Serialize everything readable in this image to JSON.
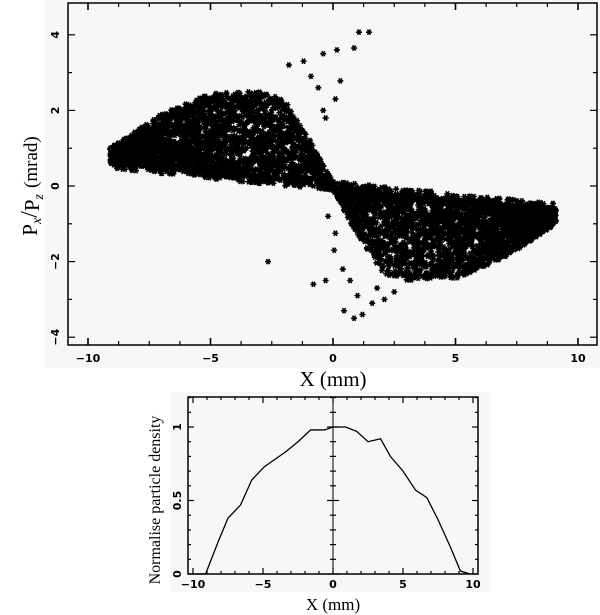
{
  "chart_data": [
    {
      "type": "scatter",
      "title": "",
      "xlabel": "X (mm)",
      "ylabel_parts": {
        "num": "P",
        "num_sub": "x",
        "den": "P",
        "den_sub": "z",
        "unit": "(mrad)"
      },
      "ylabel": "Px/Pz (mrad)",
      "xlim": [
        -10.8,
        10.8
      ],
      "ylim": [
        -4.2,
        4.9
      ],
      "xticks": [
        -10,
        -5,
        0,
        5,
        10
      ],
      "yticks": [
        -4,
        -2,
        0,
        2,
        4
      ],
      "x_minor_step": 1.5,
      "y_minor_step": 1,
      "grid": false,
      "marker": "asterisk",
      "color": "#000000",
      "point_count_approx": 6000,
      "distribution": {
        "description": "Two opposing triangular lobes (bow-tie) crossing at origin",
        "left_lobe": {
          "x_range": [
            -9.1,
            0
          ],
          "lower_edge": [
            [
              -9.1,
              0.6
            ],
            [
              -5,
              0.35
            ],
            [
              0,
              0.02
            ]
          ],
          "upper_edge": [
            [
              -9.1,
              1.0
            ],
            [
              -7,
              1.9
            ],
            [
              -5,
              2.45
            ],
            [
              -3,
              2.5
            ],
            [
              -2,
              2.3
            ],
            [
              -1,
              1.3
            ],
            [
              0,
              0.1
            ]
          ]
        },
        "right_lobe": {
          "x_range": [
            0,
            9.1
          ],
          "upper_edge": [
            [
              0,
              -0.02
            ],
            [
              5,
              -0.35
            ],
            [
              9.1,
              -0.6
            ]
          ],
          "lower_edge": [
            [
              0,
              -0.1
            ],
            [
              1,
              -1.3
            ],
            [
              2,
              -2.3
            ],
            [
              3,
              -2.5
            ],
            [
              5,
              -2.45
            ],
            [
              7,
              -1.9
            ],
            [
              9.1,
              -1.0
            ]
          ]
        }
      },
      "outliers": [
        [
          1.06,
          4.07
        ],
        [
          1.47,
          4.07
        ],
        [
          0.86,
          3.65
        ],
        [
          0.16,
          3.6
        ],
        [
          -0.4,
          3.5
        ],
        [
          0.3,
          2.78
        ],
        [
          -1.2,
          3.3
        ],
        [
          -1.8,
          3.2
        ],
        [
          0.1,
          2.3
        ],
        [
          -0.4,
          2.0
        ],
        [
          -0.3,
          1.8
        ],
        [
          -0.9,
          2.9
        ],
        [
          -0.6,
          2.6
        ],
        [
          -0.8,
          -2.6
        ],
        [
          -0.3,
          -2.5
        ],
        [
          0.45,
          -3.3
        ],
        [
          0.86,
          -3.5
        ],
        [
          1.2,
          -3.4
        ],
        [
          -0.2,
          -0.8
        ],
        [
          0.1,
          -1.25
        ],
        [
          0.05,
          -1.7
        ],
        [
          0.4,
          -2.2
        ],
        [
          -2.65,
          -2.0
        ],
        [
          1.6,
          -3.1
        ],
        [
          2.1,
          -3.0
        ],
        [
          2.5,
          -2.8
        ],
        [
          1.0,
          -2.9
        ],
        [
          0.7,
          -2.5
        ],
        [
          1.8,
          -2.7
        ]
      ]
    },
    {
      "type": "line",
      "title": "",
      "xlabel": "X (mm)",
      "ylabel": "Normalise particle density",
      "xlim": [
        -10.4,
        10.4
      ],
      "ylim": [
        0,
        1.2
      ],
      "xticks": [
        -10,
        -5,
        0,
        5,
        10
      ],
      "yticks": [
        0,
        0.5,
        1
      ],
      "ytick_labels": [
        "0",
        "0.5",
        "1"
      ],
      "x_minor_step": 1,
      "y_minor_step": 0.1,
      "grid": false,
      "center_line_x": 0,
      "series": [
        {
          "name": "density",
          "color": "#000000",
          "x": [
            -9.8,
            -9.1,
            -8.2,
            -7.5,
            -6.6,
            -5.8,
            -4.9,
            -3.4,
            -2.5,
            -1.6,
            -0.6,
            0.0,
            0.9,
            1.7,
            2.5,
            3.4,
            4.1,
            5.0,
            5.9,
            6.7,
            7.5,
            8.4,
            9.1,
            9.8
          ],
          "y": [
            0.0,
            0.0,
            0.22,
            0.38,
            0.47,
            0.64,
            0.73,
            0.83,
            0.9,
            0.98,
            0.98,
            1.0,
            1.0,
            0.97,
            0.9,
            0.92,
            0.8,
            0.7,
            0.57,
            0.52,
            0.37,
            0.18,
            0.02,
            0.0
          ]
        }
      ]
    }
  ],
  "top_plot": {
    "xlabel": "X (mm)",
    "ylabel_num": "P",
    "ylabel_num_sub": "x",
    "ylabel_den": "P",
    "ylabel_den_sub": "z",
    "ylabel_unit": "(mrad)",
    "xtick_labels": [
      "−10",
      "−5",
      "0",
      "5",
      "10"
    ],
    "ytick_labels": [
      "−4",
      "−2",
      "0",
      "2",
      "4"
    ]
  },
  "bottom_plot": {
    "xlabel": "X (mm)",
    "ylabel": "Normalise particle density",
    "xtick_labels": [
      "−10",
      "−5",
      "0",
      "5",
      "10"
    ],
    "ytick_labels": [
      "0",
      "0.5",
      "1"
    ]
  }
}
